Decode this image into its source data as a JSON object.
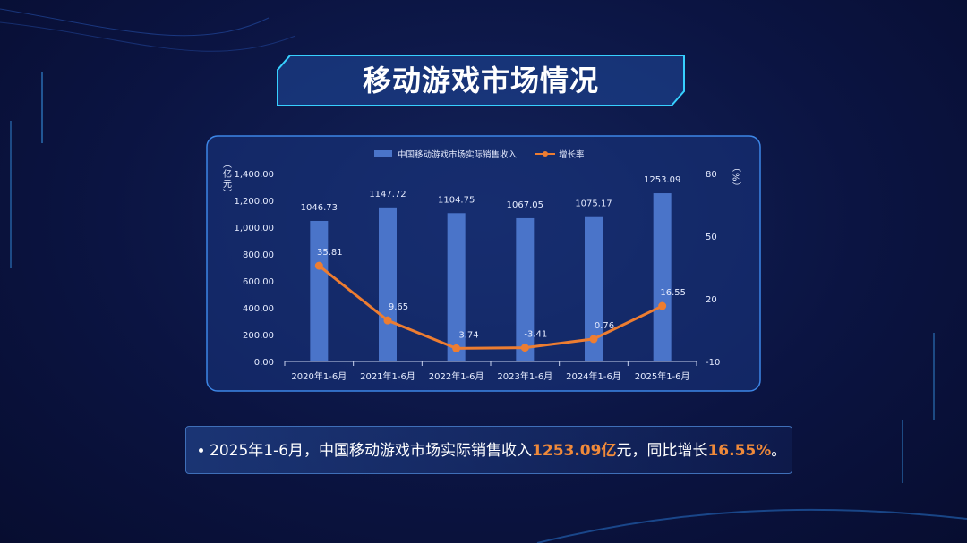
{
  "slide": {
    "title": "移动游戏市场情况",
    "bullet": [
      "2025年1-6月，中国移动游戏市场实际销售收入",
      "1253.09亿",
      "元，同比增长",
      "16.55%",
      "。"
    ]
  },
  "chart_data": {
    "type": "bar",
    "categories": [
      "2020年1-6月",
      "2021年1-6月",
      "2022年1-6月",
      "2023年1-6月",
      "2024年1-6月",
      "2025年1-6月"
    ],
    "series": [
      {
        "name": "中国移动游戏市场实际销售收入",
        "color": "#4a74c9",
        "values": [
          1046.73,
          1147.72,
          1104.75,
          1067.05,
          1075.17,
          1253.09
        ]
      },
      {
        "name": "增长率",
        "type": "line",
        "axis": "y2",
        "color": "#ed7d31",
        "values": [
          35.81,
          9.65,
          -3.74,
          -3.41,
          0.76,
          16.55
        ]
      }
    ],
    "y_label": "（亿元）",
    "y2_label": "（%）",
    "ylim": [
      0,
      1400
    ],
    "yticks": [
      {
        "value": 0,
        "label": "0.00"
      },
      {
        "value": 200,
        "label": "200.00"
      },
      {
        "value": 400,
        "label": "400.00"
      },
      {
        "value": 600,
        "label": "600.00"
      },
      {
        "value": 800,
        "label": "800.00"
      },
      {
        "value": 1000,
        "label": "1,000.00"
      },
      {
        "value": 1200,
        "label": "1,200.00"
      },
      {
        "value": 1400,
        "label": "1,400.00"
      }
    ],
    "y2lim": [
      -10,
      80
    ],
    "y2ticks": [
      -10,
      20,
      50,
      80
    ],
    "legend": "top",
    "grid": false
  }
}
